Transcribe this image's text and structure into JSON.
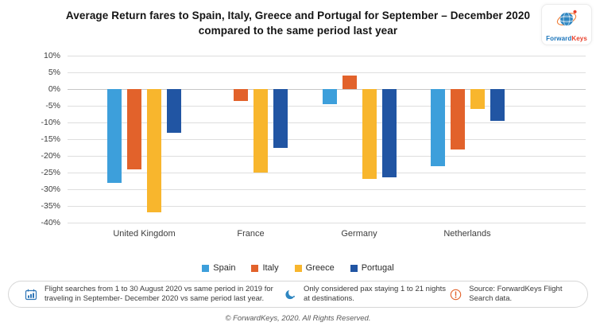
{
  "header": {
    "title": "Average Return fares to Spain, Italy, Greece and Portugal for September – December 2020 compared to the same period last year",
    "logo": {
      "icon": "globe-orbit-icon",
      "brand_first": "Forward",
      "brand_second": "Keys",
      "brand_first_color": "#1b75bb",
      "brand_second_color": "#e8412c"
    }
  },
  "chart_data": {
    "type": "bar",
    "title": "Average Return fares to Spain, Italy, Greece and Portugal for September – December 2020 compared to the same period last year",
    "categories": [
      "United Kingdom",
      "France",
      "Germany",
      "Netherlands"
    ],
    "series": [
      {
        "name": "Spain",
        "color": "#3d9fdb",
        "values": [
          -28,
          0,
          -4.5,
          -23
        ]
      },
      {
        "name": "Italy",
        "color": "#e2622b",
        "values": [
          -24,
          -3.5,
          4,
          -18
        ]
      },
      {
        "name": "Greece",
        "color": "#f8b62d",
        "values": [
          -37,
          -25,
          -27,
          -6
        ]
      },
      {
        "name": "Portugal",
        "color": "#2155a3",
        "values": [
          -13,
          -17.5,
          -26.5,
          -9.5
        ]
      }
    ],
    "ylim": [
      -40,
      10
    ],
    "ytick_step": 5,
    "ytick_suffix": "%",
    "grid": true,
    "legend_position": "bottom",
    "xlabel": "",
    "ylabel": ""
  },
  "footer": {
    "notes": [
      {
        "icon": "calendar-chart-icon",
        "text": "Flight searches from 1 to 30 August 2020 vs same period in 2019 for traveling in September- December 2020 vs same period last year."
      },
      {
        "icon": "moon-icon",
        "text": "Only considered pax staying 1 to 21 nights at destinations."
      },
      {
        "icon": "alert-icon",
        "text": "Source: ForwardKeys Flight Search data."
      }
    ],
    "copyright": "© ForwardKeys, 2020. All Rights Reserved."
  }
}
